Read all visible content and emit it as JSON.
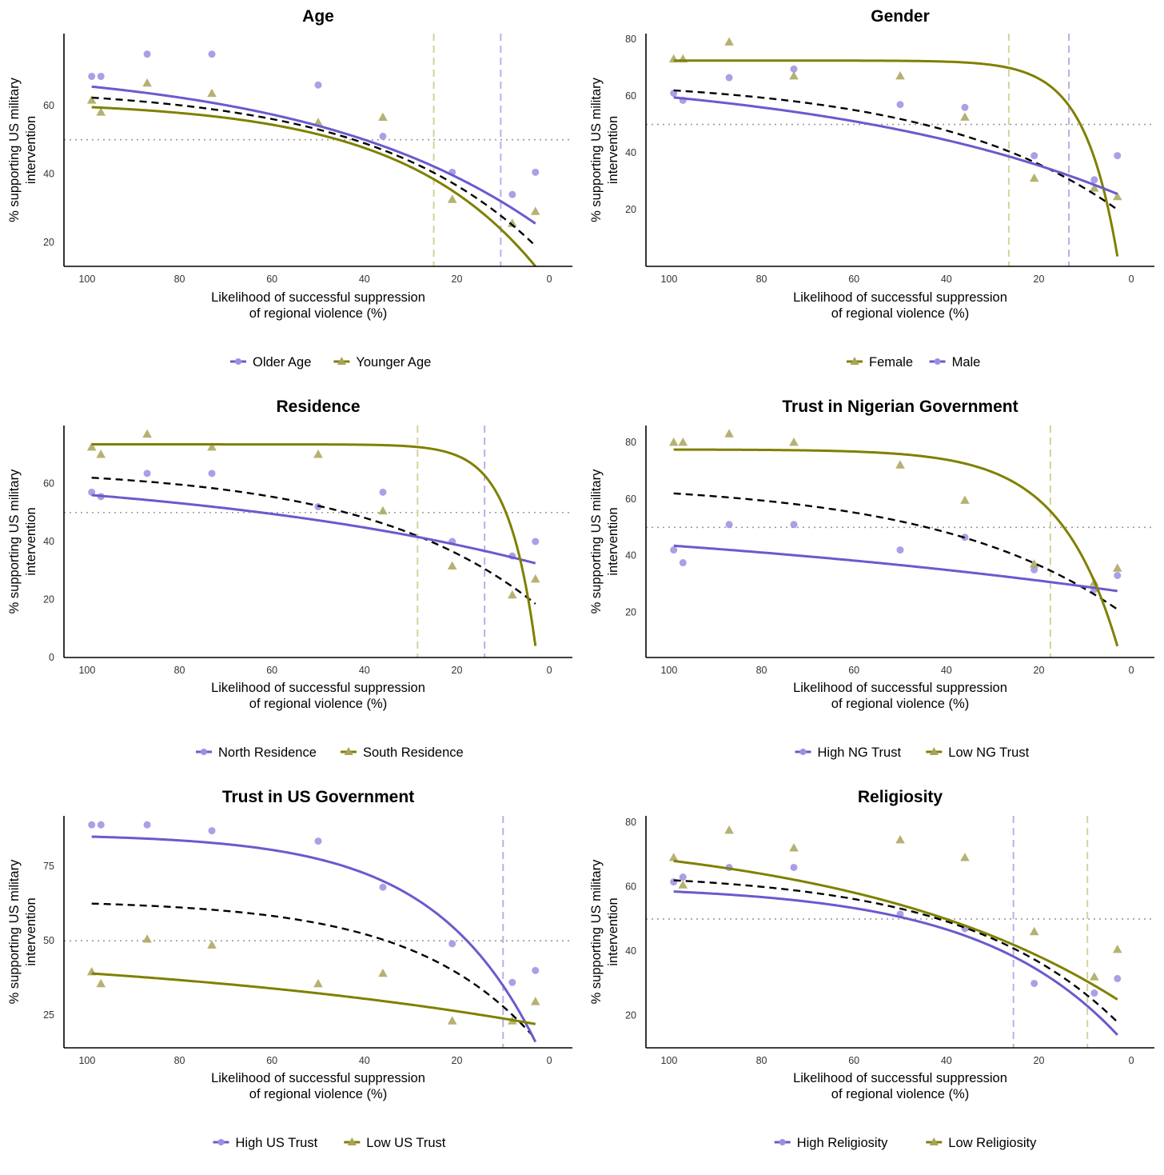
{
  "colors": {
    "purple": "#6a5acd",
    "olive": "#808000",
    "purple_point": "#9b8fe0",
    "olive_point": "#a8a35a",
    "vline_purple": "#b8b0e8",
    "vline_olive": "#d4d39a"
  },
  "common": {
    "xlabel": "Likelihood of successful suppression of regional violence (%)",
    "xlabel_line1": "Likelihood of successful suppression",
    "xlabel_line2": "of regional violence (%)",
    "ylabel_line1": "% supporting US military",
    "ylabel_line2": "intervention",
    "x_ticks": [
      "100",
      "80",
      "60",
      "40",
      "20",
      "0"
    ]
  },
  "chart_data": [
    {
      "type": "scatter",
      "title": "Age",
      "xlim": [
        105,
        -5
      ],
      "ylim": [
        13,
        81
      ],
      "y_ticks": [
        20,
        40,
        60
      ],
      "reference_line": 50,
      "overall_curve": {
        "start": 62.3,
        "end": 19,
        "k": 0.28
      },
      "vlines": [
        {
          "x": 25,
          "color": "olive"
        },
        {
          "x": 10.5,
          "color": "purple"
        }
      ],
      "series": [
        {
          "name": "Older Age",
          "color": "purple",
          "marker": "circle",
          "x": [
            99,
            97,
            87,
            73,
            50,
            36,
            21,
            8,
            3
          ],
          "y": [
            68.5,
            68.5,
            75,
            75,
            66,
            51,
            40.5,
            34,
            40.5
          ],
          "curve": {
            "start": 65.5,
            "end": 25.5,
            "k": 0.2
          }
        },
        {
          "name": "Younger Age",
          "color": "olive",
          "marker": "triangle",
          "x": [
            99,
            97,
            87,
            73,
            50,
            36,
            21,
            8,
            3
          ],
          "y": [
            61.5,
            58,
            66.5,
            63.5,
            55,
            56.5,
            32.5,
            25.5,
            29
          ],
          "curve": {
            "start": 59.5,
            "end": 13,
            "k": 0.34
          }
        }
      ],
      "legend": [
        "Older Age",
        "Younger Age"
      ]
    },
    {
      "type": "scatter",
      "title": "Gender",
      "xlim": [
        105,
        -5
      ],
      "ylim": [
        0,
        82
      ],
      "y_ticks": [
        20,
        40,
        60,
        80
      ],
      "reference_line": 50,
      "overall_curve": {
        "start": 62,
        "end": 20,
        "k": 0.25
      },
      "vlines": [
        {
          "x": 26.5,
          "color": "olive"
        },
        {
          "x": 13.5,
          "color": "purple"
        }
      ],
      "series": [
        {
          "name": "Female",
          "color": "olive",
          "marker": "triangle",
          "x": [
            99,
            97,
            87,
            73,
            50,
            36,
            21,
            8,
            3
          ],
          "y": [
            73,
            73,
            79,
            67,
            67,
            52.5,
            31,
            27.5,
            24.5
          ],
          "curve": {
            "start": 72.5,
            "end": 3.5,
            "k": 1.4
          }
        },
        {
          "name": "Male",
          "color": "purple",
          "marker": "circle",
          "x": [
            99,
            97,
            87,
            73,
            50,
            36,
            21,
            8,
            3
          ],
          "y": [
            61,
            58.5,
            66.5,
            69.5,
            57,
            56,
            39,
            30.5,
            39
          ],
          "curve": {
            "start": 59.5,
            "end": 25.5,
            "k": 0.15
          }
        }
      ],
      "legend": [
        "Female",
        "Male"
      ]
    },
    {
      "type": "scatter",
      "title": "Residence",
      "xlim": [
        105,
        -5
      ],
      "ylim": [
        0,
        80
      ],
      "y_ticks": [
        0,
        20,
        40,
        60
      ],
      "reference_line": 50,
      "overall_curve": {
        "start": 62,
        "end": 18.5,
        "k": 0.27
      },
      "vlines": [
        {
          "x": 28.5,
          "color": "olive"
        },
        {
          "x": 14,
          "color": "purple"
        }
      ],
      "series": [
        {
          "name": "North Residence",
          "color": "purple",
          "marker": "circle",
          "x": [
            99,
            97,
            87,
            73,
            50,
            36,
            21,
            8,
            3
          ],
          "y": [
            57,
            55.5,
            63.5,
            63.5,
            52,
            57,
            40,
            35,
            40
          ],
          "curve": {
            "start": 56,
            "end": 32.5,
            "k": 0.12
          }
        },
        {
          "name": "South Residence",
          "color": "olive",
          "marker": "triangle",
          "x": [
            99,
            97,
            87,
            73,
            50,
            36,
            21,
            8,
            3
          ],
          "y": [
            72.5,
            70,
            77,
            72.5,
            70,
            50.5,
            31.5,
            21.5,
            27
          ],
          "curve": {
            "start": 73.5,
            "end": 4,
            "k": 1.7
          }
        }
      ],
      "legend": [
        "North Residence",
        "South Residence"
      ]
    },
    {
      "type": "scatter",
      "title": "Trust in Nigerian Government",
      "xlim": [
        105,
        -5
      ],
      "ylim": [
        4,
        86
      ],
      "y_ticks": [
        20,
        40,
        60,
        80
      ],
      "reference_line": 50,
      "overall_curve": {
        "start": 62,
        "end": 21,
        "k": 0.25
      },
      "vlines": [
        {
          "x": 17.5,
          "color": "olive"
        }
      ],
      "series": [
        {
          "name": "High NG Trust",
          "color": "purple",
          "marker": "circle",
          "x": [
            99,
            97,
            87,
            73,
            50,
            36,
            21,
            8,
            3
          ],
          "y": [
            42,
            37.5,
            51,
            51,
            42,
            46.5,
            35,
            28,
            33
          ],
          "curve": {
            "start": 43.5,
            "end": 27.5,
            "k": 0.07
          }
        },
        {
          "name": "Low NG Trust",
          "color": "olive",
          "marker": "triangle",
          "x": [
            99,
            97,
            87,
            73,
            50,
            36,
            21,
            8,
            3
          ],
          "y": [
            80,
            80,
            83,
            80,
            72,
            59.5,
            37,
            30.5,
            35.5
          ],
          "curve": {
            "start": 77.5,
            "end": 8,
            "k": 0.8
          }
        }
      ],
      "legend": [
        "High NG Trust",
        "Low NG Trust"
      ]
    },
    {
      "type": "scatter",
      "title": "Trust in US Government",
      "xlim": [
        105,
        -5
      ],
      "ylim": [
        14,
        92
      ],
      "y_ticks": [
        25,
        50,
        75
      ],
      "reference_line": 50,
      "overall_curve": {
        "start": 62.5,
        "end": 17,
        "k": 0.38
      },
      "vlines": [
        {
          "x": 10,
          "color": "purple"
        }
      ],
      "series": [
        {
          "name": "High US Trust",
          "color": "purple",
          "marker": "circle",
          "x": [
            99,
            97,
            87,
            73,
            50,
            36,
            21,
            8,
            3
          ],
          "y": [
            89,
            89,
            89,
            87,
            83.5,
            68,
            49,
            36,
            40
          ],
          "curve": {
            "start": 85,
            "end": 16,
            "k": 0.45
          }
        },
        {
          "name": "Low US Trust",
          "color": "olive",
          "marker": "triangle",
          "x": [
            99,
            97,
            87,
            73,
            50,
            36,
            21,
            8,
            3
          ],
          "y": [
            39.5,
            35.5,
            50.5,
            48.5,
            35.5,
            39,
            23,
            23,
            29.5
          ],
          "curve": {
            "start": 39,
            "end": 22,
            "k": 0.1
          }
        }
      ],
      "legend": [
        "High US Trust",
        "Low US Trust"
      ]
    },
    {
      "type": "scatter",
      "title": "Religiosity",
      "xlim": [
        105,
        -5
      ],
      "ylim": [
        10,
        82
      ],
      "y_ticks": [
        20,
        40,
        60,
        80
      ],
      "reference_line": 50,
      "overall_curve": {
        "start": 62,
        "end": 18,
        "k": 0.3
      },
      "vlines": [
        {
          "x": 25.5,
          "color": "purple"
        },
        {
          "x": 9.5,
          "color": "olive"
        }
      ],
      "series": [
        {
          "name": "High Religiosity",
          "color": "purple",
          "marker": "circle",
          "x": [
            99,
            97,
            87,
            73,
            50,
            36,
            21,
            8,
            3
          ],
          "y": [
            61.5,
            63,
            66,
            66,
            51.5,
            47,
            30,
            27,
            31.5
          ],
          "curve": {
            "start": 58.5,
            "end": 14,
            "k": 0.33
          }
        },
        {
          "name": "Low Religiosity",
          "color": "olive",
          "marker": "triangle",
          "x": [
            99,
            97,
            87,
            73,
            50,
            36,
            21,
            8,
            3
          ],
          "y": [
            69,
            60.5,
            77.5,
            72,
            74.5,
            69,
            46,
            32,
            40.5
          ],
          "curve": {
            "start": 68,
            "end": 25,
            "k": 0.17
          }
        }
      ],
      "legend": [
        "High Religiosity",
        "Low Religiosity"
      ]
    }
  ]
}
